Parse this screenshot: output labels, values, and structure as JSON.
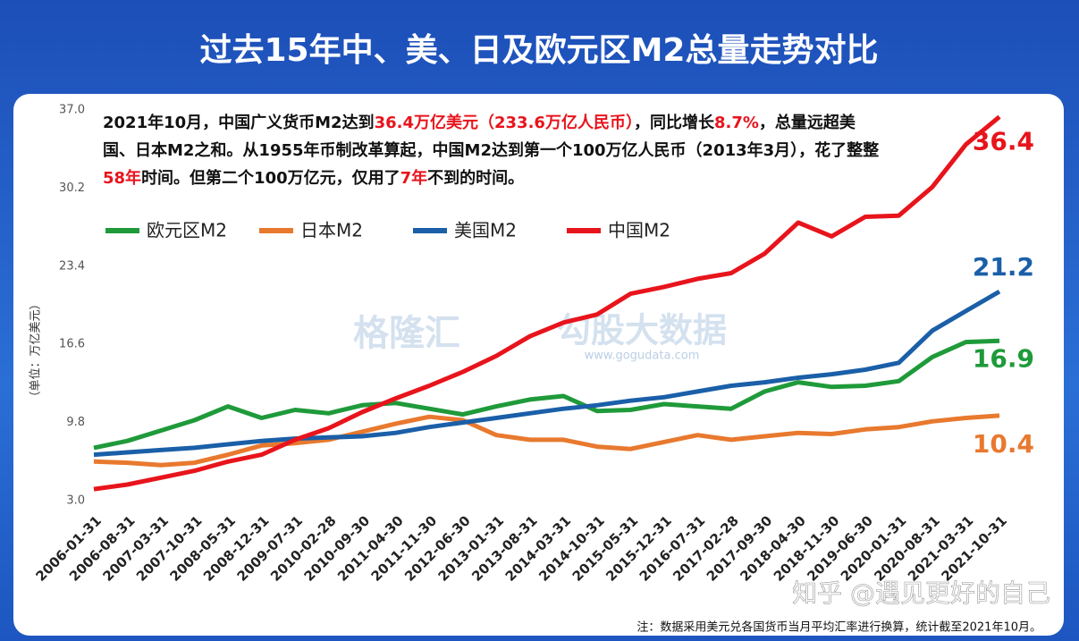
{
  "chart_data": {
    "type": "line",
    "title": "过去15年中、美、日及欧元区M2总量走势对比",
    "annotation": [
      {
        "text": "2021年10月，中国广义货币M2达到"
      },
      {
        "text": "36.4万亿美元（233.6万亿人民币）",
        "color": "#e8141c"
      },
      {
        "text": "，同比增长"
      },
      {
        "text": "8.7%",
        "color": "#e8141c"
      },
      {
        "text": "，总量远超美国、日本M2之和。从1955年币制改革算起，中国M2达到第一个100万亿人民币（2013年3月），花了整整"
      },
      {
        "text": "58年",
        "color": "#e8141c"
      },
      {
        "text": "时间。但第二个100万亿元，仅用了"
      },
      {
        "text": "7年",
        "color": "#e8141c"
      },
      {
        "text": "不到的时间。"
      }
    ],
    "y_label": "（单位：万亿美元）",
    "footnote": "注：数据采用美元兑各国货币当月平均汇率进行换算，统计截至2021年10月。",
    "watermarks": [
      "格隆汇",
      "勾股大数据",
      "www.gogudata.com",
      "知乎 @遇见更好的自己"
    ],
    "categories": [
      "2006-01-31",
      "2006-08-31",
      "2007-03-31",
      "2007-10-31",
      "2008-05-31",
      "2008-12-31",
      "2009-07-31",
      "2010-02-28",
      "2010-09-30",
      "2011-04-30",
      "2011-11-30",
      "2012-06-30",
      "2013-01-31",
      "2013-08-31",
      "2014-03-31",
      "2014-10-31",
      "2015-05-31",
      "2015-12-31",
      "2016-07-31",
      "2017-02-28",
      "2017-09-30",
      "2018-04-30",
      "2018-11-30",
      "2019-06-30",
      "2020-01-31",
      "2020-08-31",
      "2021-03-31",
      "2021-10-31"
    ],
    "series": [
      {
        "name": "欧元区M2",
        "color": "#1f9a3a",
        "values": [
          7.6,
          8.2,
          9.1,
          10.0,
          11.2,
          10.2,
          10.9,
          10.6,
          11.3,
          11.5,
          11.0,
          10.5,
          11.2,
          11.8,
          12.1,
          10.8,
          10.9,
          11.4,
          11.2,
          11.0,
          12.5,
          13.3,
          12.9,
          13.0,
          13.4,
          15.5,
          16.8,
          16.9
        ]
      },
      {
        "name": "日本M2",
        "color": "#e8792e",
        "values": [
          6.4,
          6.3,
          6.1,
          6.3,
          7.0,
          7.8,
          8.0,
          8.3,
          9.0,
          9.7,
          10.3,
          10.0,
          8.7,
          8.3,
          8.3,
          7.7,
          7.5,
          8.1,
          8.7,
          8.3,
          8.6,
          8.9,
          8.8,
          9.2,
          9.4,
          9.9,
          10.2,
          10.4
        ]
      },
      {
        "name": "美国M2",
        "color": "#1a5fa8",
        "values": [
          7.0,
          7.2,
          7.4,
          7.6,
          7.9,
          8.2,
          8.4,
          8.5,
          8.6,
          8.9,
          9.4,
          9.8,
          10.2,
          10.6,
          11.0,
          11.3,
          11.7,
          12.0,
          12.5,
          13.0,
          13.3,
          13.7,
          14.0,
          14.4,
          15.0,
          17.8,
          19.5,
          21.2
        ]
      },
      {
        "name": "中国M2",
        "color": "#e8141c",
        "values": [
          4.0,
          4.4,
          5.0,
          5.6,
          6.4,
          7.0,
          8.3,
          9.3,
          10.7,
          11.9,
          13.0,
          14.2,
          15.6,
          17.3,
          18.5,
          19.2,
          21.0,
          21.6,
          22.3,
          22.8,
          24.5,
          27.2,
          26.0,
          27.7,
          27.8,
          30.3,
          34.0,
          36.4
        ]
      }
    ],
    "ylim": [
      3,
      37
    ],
    "yticks": [
      {
        "value": 3,
        "label": "3.0"
      },
      9.8,
      16.6,
      23.4,
      30.2,
      {
        "value": 37,
        "label": "37.0"
      }
    ],
    "grid": false
  }
}
